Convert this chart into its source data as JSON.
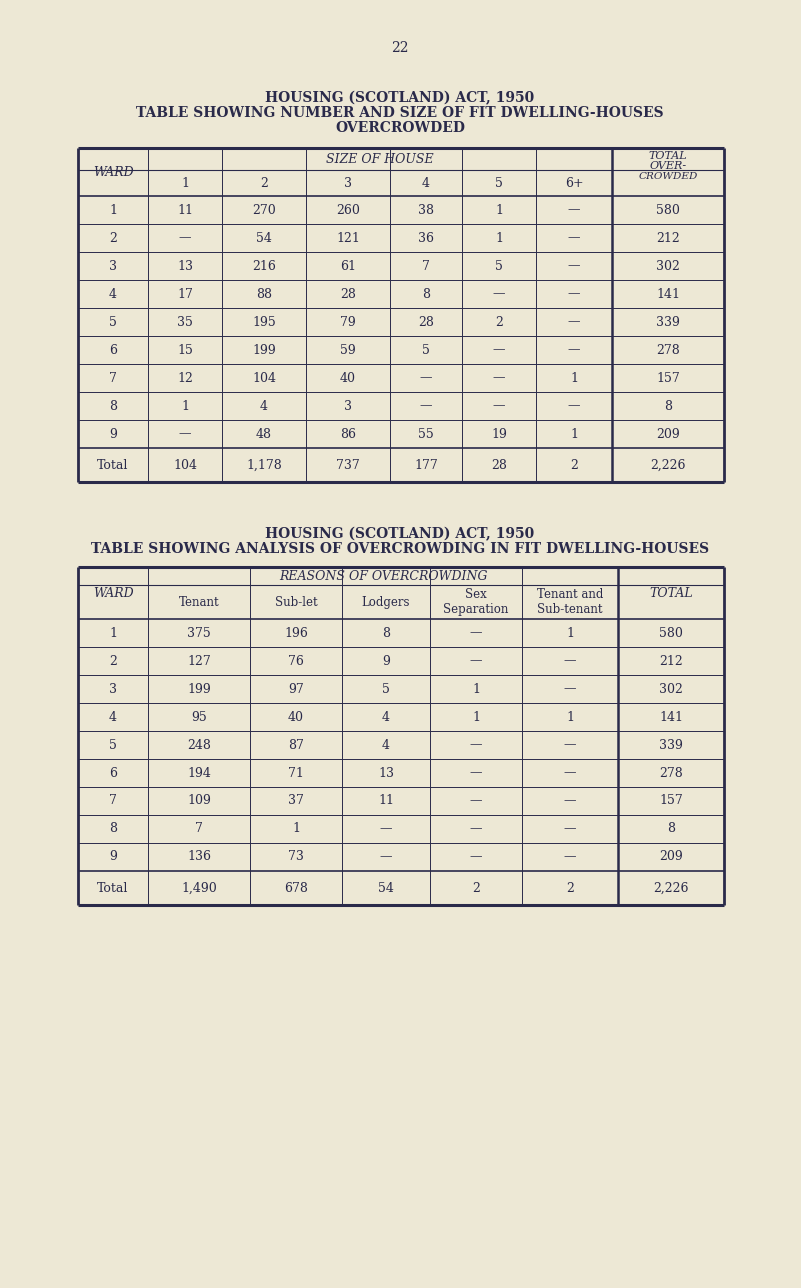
{
  "page_number": "22",
  "bg_color": "#ede8d5",
  "text_color": "#2a2a4a",
  "line_color": "#2a2a4a",
  "table1": {
    "title1": "HOUSING (SCOTLAND) ACT, 1950",
    "title2": "TABLE SHOWING NUMBER AND SIZE OF FIT DWELLING-HOUSES",
    "title3": "OVERCROWDED",
    "rows": [
      [
        "1",
        "11",
        "270",
        "260",
        "38",
        "1",
        "—",
        "580"
      ],
      [
        "2",
        "—",
        "54",
        "121",
        "36",
        "1",
        "—",
        "212"
      ],
      [
        "3",
        "13",
        "216",
        "61",
        "7",
        "5",
        "—",
        "302"
      ],
      [
        "4",
        "17",
        "88",
        "28",
        "8",
        "—",
        "—",
        "141"
      ],
      [
        "5",
        "35",
        "195",
        "79",
        "28",
        "2",
        "—",
        "339"
      ],
      [
        "6",
        "15",
        "199",
        "59",
        "5",
        "—",
        "—",
        "278"
      ],
      [
        "7",
        "12",
        "104",
        "40",
        "—",
        "—",
        "1",
        "157"
      ],
      [
        "8",
        "1",
        "4",
        "3",
        "—",
        "—",
        "—",
        "8"
      ],
      [
        "9",
        "—",
        "48",
        "86",
        "55",
        "19",
        "1",
        "209"
      ]
    ],
    "total_row": [
      "Total",
      "104",
      "1,178",
      "737",
      "177",
      "28",
      "2",
      "2,226"
    ]
  },
  "table2": {
    "title1": "HOUSING (SCOTLAND) ACT, 1950",
    "title2": "TABLE SHOWING ANALYSIS OF OVERCROWDING IN FIT DWELLING-HOUSES",
    "rows": [
      [
        "1",
        "375",
        "196",
        "8",
        "—",
        "1",
        "580"
      ],
      [
        "2",
        "127",
        "76",
        "9",
        "—",
        "—",
        "212"
      ],
      [
        "3",
        "199",
        "97",
        "5",
        "1",
        "—",
        "302"
      ],
      [
        "4",
        "95",
        "40",
        "4",
        "1",
        "1",
        "141"
      ],
      [
        "5",
        "248",
        "87",
        "4",
        "—",
        "—",
        "339"
      ],
      [
        "6",
        "194",
        "71",
        "13",
        "—",
        "—",
        "278"
      ],
      [
        "7",
        "109",
        "37",
        "11",
        "—",
        "—",
        "157"
      ],
      [
        "8",
        "7",
        "1",
        "—",
        "—",
        "—",
        "8"
      ],
      [
        "9",
        "136",
        "73",
        "—",
        "—",
        "—",
        "209"
      ]
    ],
    "total_row": [
      "Total",
      "1,490",
      "678",
      "54",
      "2",
      "2",
      "2,226"
    ]
  }
}
